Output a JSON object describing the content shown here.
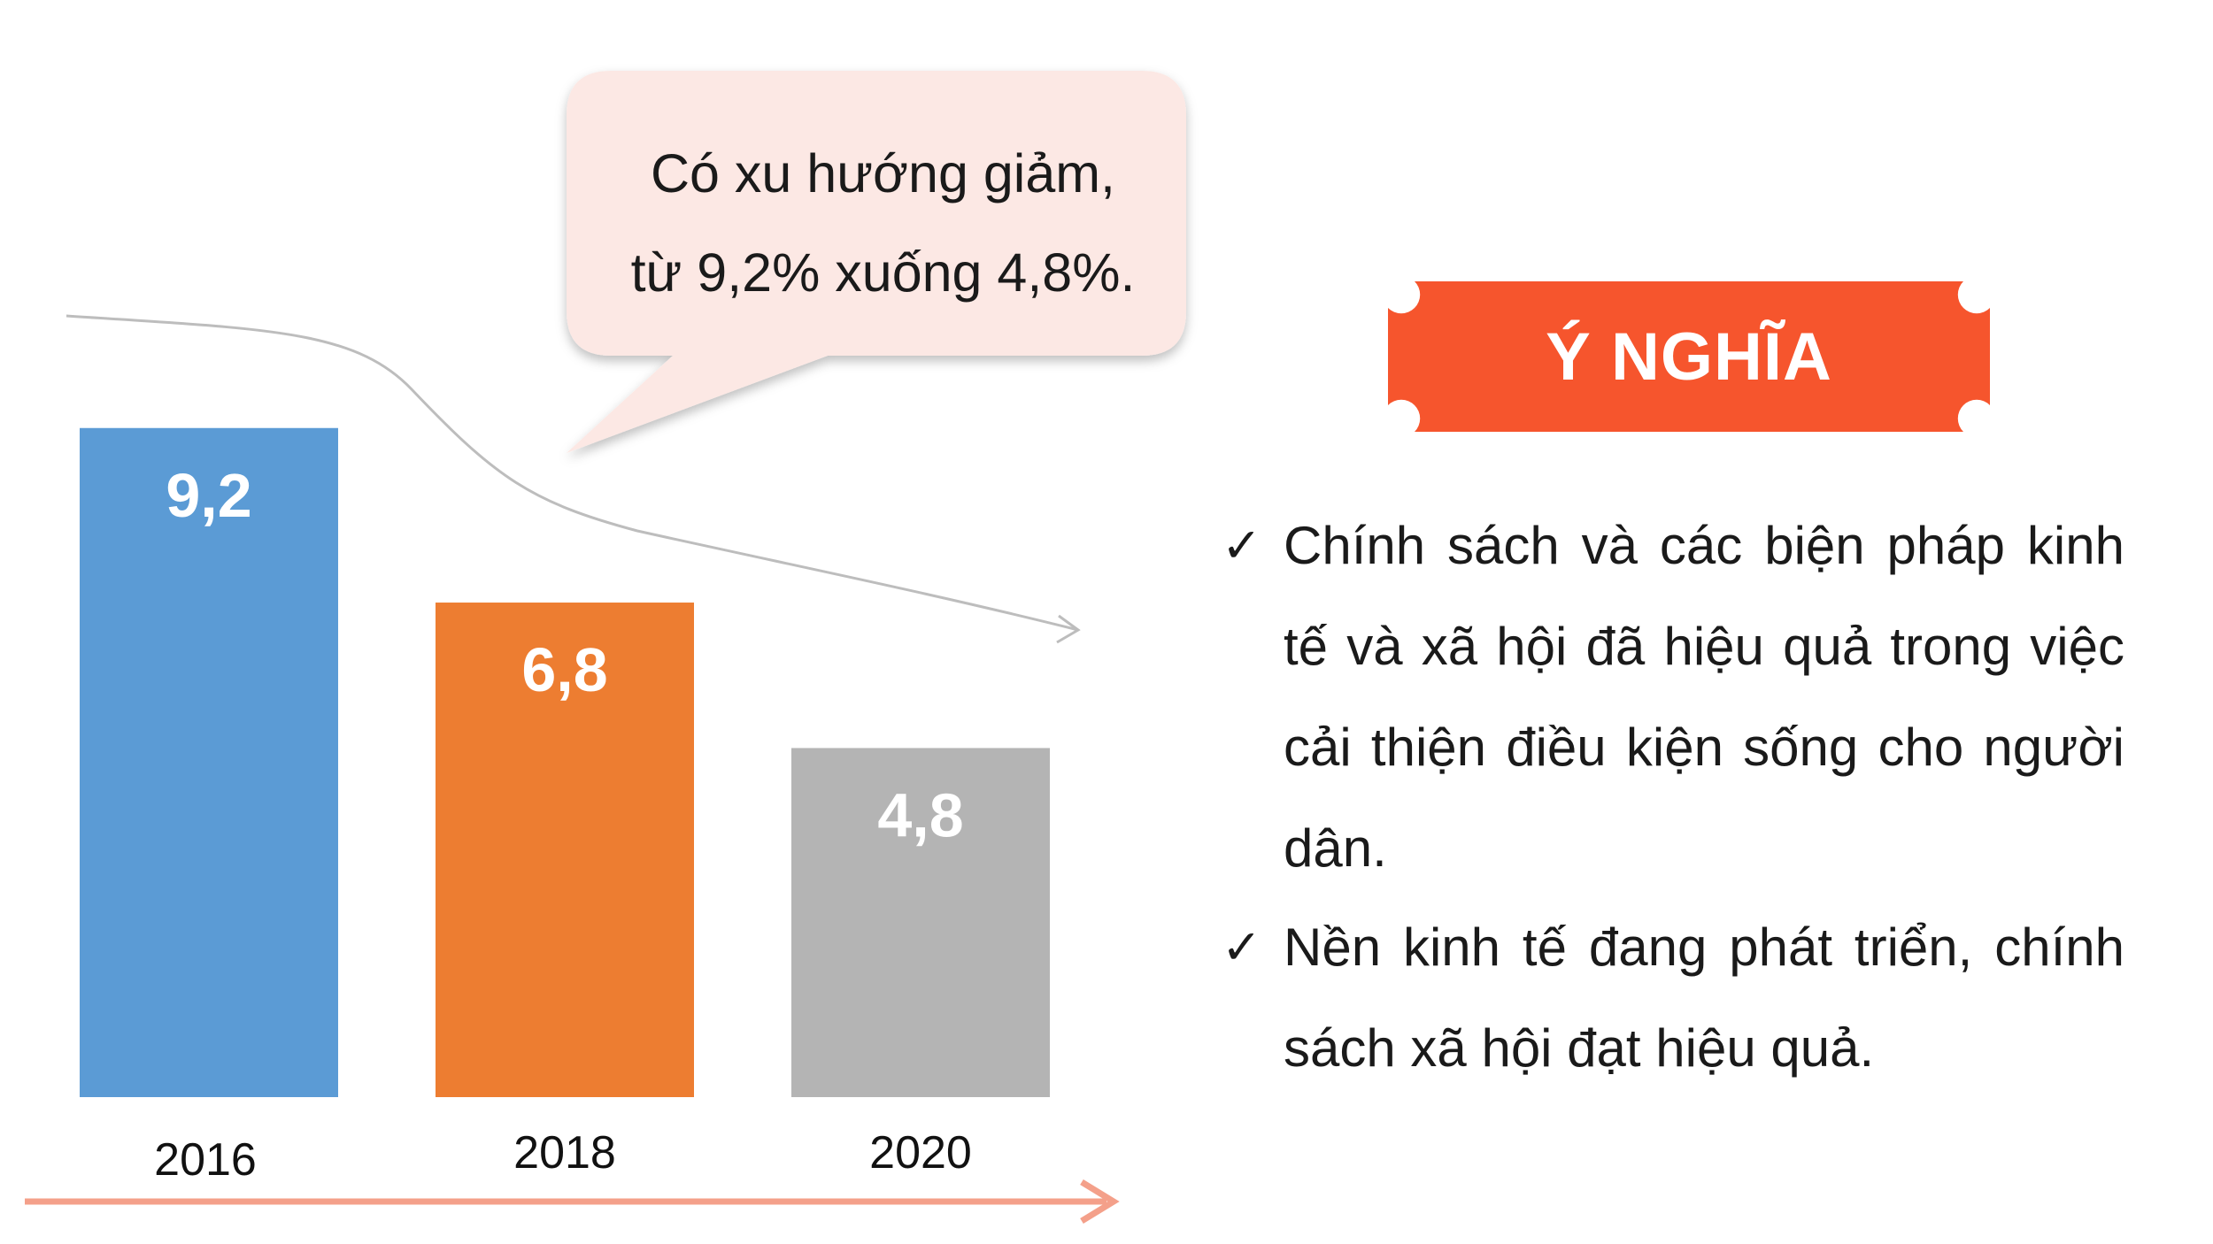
{
  "chart_data": {
    "type": "bar",
    "categories": [
      "2016",
      "2018",
      "2020"
    ],
    "values": [
      9.2,
      6.8,
      4.8
    ],
    "value_labels": [
      "9,2",
      "6,8",
      "4,8"
    ],
    "colors": [
      "#5B9BD5",
      "#ED7D31",
      "#B4B4B4"
    ],
    "ylim": [
      0,
      10
    ],
    "grid": false,
    "legend": "none"
  },
  "callout": {
    "line1": "Có xu hướng giảm,",
    "line2": "từ 9,2% xuống 4,8%."
  },
  "meaning": {
    "title": "Ý NGHĨA",
    "color": "#F6552D",
    "bullets": [
      "Chính sách và các biện pháp kinh tế và xã hội đã hiệu quả trong việc cải thiện điều kiện sống cho người dân.",
      "Nền kinh tế đang phát triển, chính sách xã hội đạt hiệu quả."
    ]
  },
  "colors": {
    "timeline_arrow": "#F4A08A",
    "trend_curve": "#BDBDBD",
    "bubble_fill": "#FCE8E4"
  }
}
